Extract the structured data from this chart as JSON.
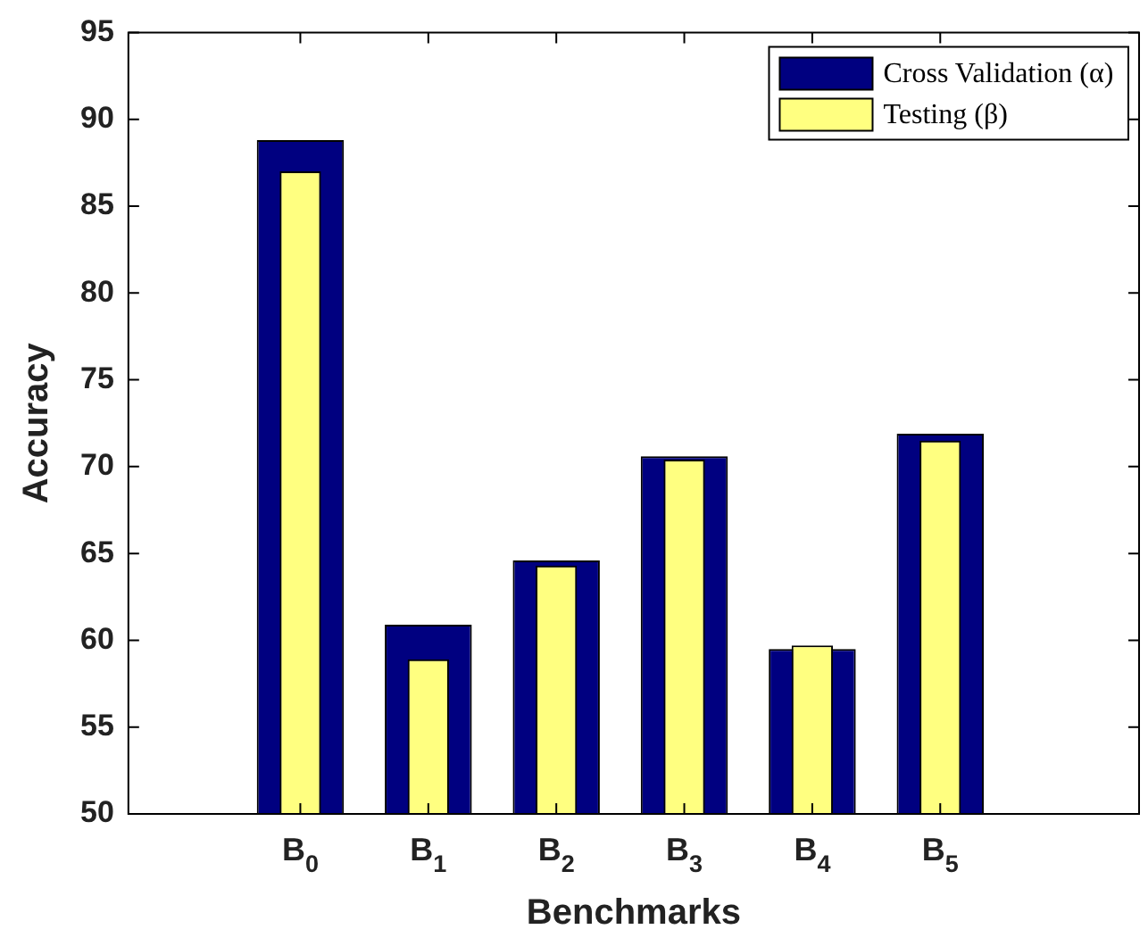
{
  "chart_data": {
    "type": "bar",
    "xlabel": "Benchmarks",
    "ylabel": "Accuracy",
    "categories": [
      "B$_{0}$",
      "B$_{1}$",
      "B$_{2}$",
      "B$_{3}$",
      "B$_{4}$",
      "B$_{5}$"
    ],
    "series": [
      {
        "name": "Cross Validation (α)",
        "color": "#000080",
        "values": [
          88.8,
          60.9,
          64.6,
          70.6,
          59.5,
          71.9
        ]
      },
      {
        "name": "Testing (β)",
        "color": "#ffff80",
        "values": [
          87.0,
          58.9,
          64.3,
          70.4,
          59.7,
          71.5
        ]
      }
    ],
    "ylim": [
      50,
      95
    ],
    "yticks": [
      50,
      55,
      60,
      65,
      70,
      75,
      80,
      85,
      90,
      95
    ],
    "grid": false,
    "legend": "top right"
  }
}
